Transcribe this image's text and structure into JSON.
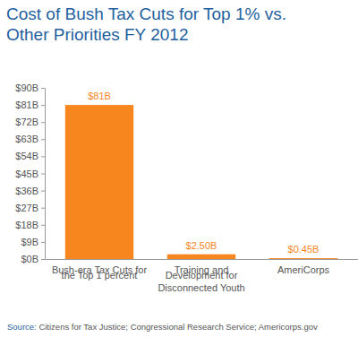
{
  "chart_data": {
    "type": "bar",
    "title": "Cost of Bush Tax Cuts for Top 1% vs. Other Priorities FY 2012",
    "categories": [
      "Bush-era Tax Cuts for the Top 1 percent",
      "Training and Development for Disconnected Youth",
      "AmeriCorps"
    ],
    "values": [
      81,
      2.5,
      0.45
    ],
    "value_labels": [
      "$81B",
      "$2.50B",
      "$0.45B"
    ],
    "data_labels": true,
    "color": "#f7861e",
    "ylim": [
      0,
      90
    ],
    "yticks": [
      {
        "value": 0,
        "label": "$0B"
      },
      {
        "value": 9,
        "label": "$9B"
      },
      {
        "value": 18,
        "label": "$18B"
      },
      {
        "value": 27,
        "label": "$27B"
      },
      {
        "value": 36,
        "label": "$36B"
      },
      {
        "value": 45,
        "label": "$45B"
      },
      {
        "value": 54,
        "label": "$54B"
      },
      {
        "value": 63,
        "label": "$63B"
      },
      {
        "value": 72,
        "label": "$72B"
      },
      {
        "value": 81,
        "label": "$81B"
      },
      {
        "value": 90,
        "label": "$90B"
      }
    ],
    "grid": false,
    "source": "Source: Citizens for Tax Justice; Congressional Research Service; Americorps.gov"
  }
}
